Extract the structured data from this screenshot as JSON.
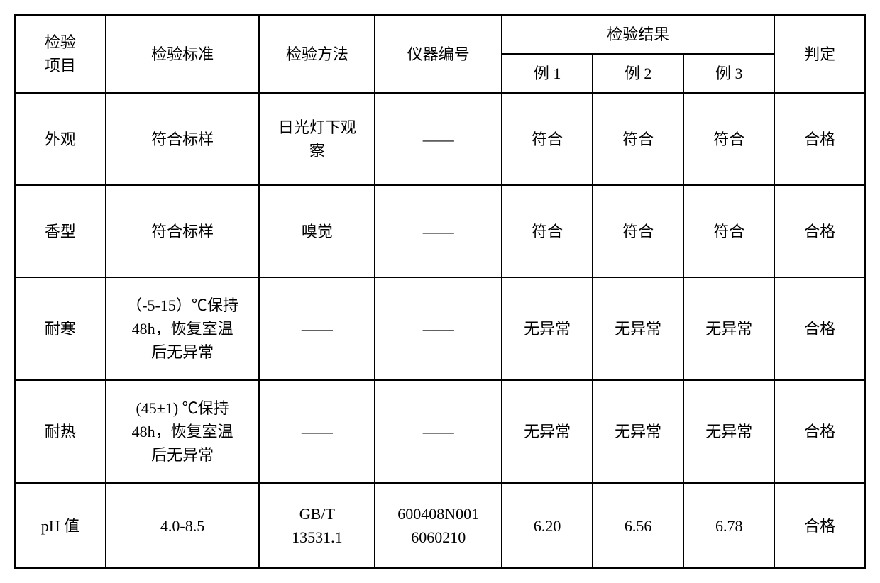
{
  "table": {
    "headers": {
      "item": "检验\n项目",
      "standard": "检验标准",
      "method": "检验方法",
      "instrument": "仪器编号",
      "result_group": "检验结果",
      "result1": "例 1",
      "result2": "例 2",
      "result3": "例 3",
      "judge": "判定"
    },
    "rows": [
      {
        "item": "外观",
        "standard": "符合标样",
        "method": "日光灯下观\n察",
        "instrument": "——",
        "r1": "符合",
        "r2": "符合",
        "r3": "符合",
        "judge": "合格"
      },
      {
        "item": "香型",
        "standard": "符合标样",
        "method": "嗅觉",
        "instrument": "——",
        "r1": "符合",
        "r2": "符合",
        "r3": "符合",
        "judge": "合格"
      },
      {
        "item": "耐寒",
        "standard": "（-5-15）℃保持\n48h，恢复室温\n后无异常",
        "method": "——",
        "instrument": "——",
        "r1": "无异常",
        "r2": "无异常",
        "r3": "无异常",
        "judge": "合格"
      },
      {
        "item": "耐热",
        "standard": "(45±1) ℃保持\n48h，恢复室温\n后无异常",
        "method": "——",
        "instrument": "——",
        "r1": "无异常",
        "r2": "无异常",
        "r3": "无异常",
        "judge": "合格"
      },
      {
        "item": "pH 值",
        "standard": "4.0-8.5",
        "method": "GB/T\n13531.1",
        "instrument": "600408N001\n6060210",
        "r1": "6.20",
        "r2": "6.56",
        "r3": "6.78",
        "judge": "合格"
      }
    ],
    "style": {
      "border_color": "#000000",
      "background_color": "#ffffff",
      "font_size": 22,
      "border_width": 2
    }
  }
}
